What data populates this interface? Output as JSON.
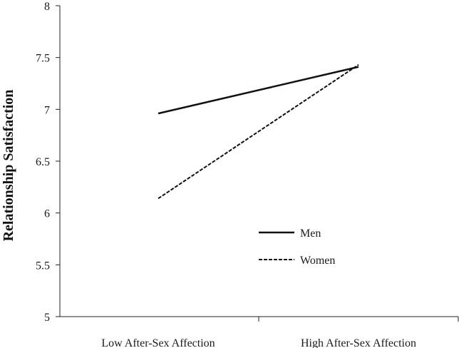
{
  "chart_data": {
    "type": "line",
    "categories": [
      "Low After-Sex Affection",
      "High After-Sex Affection"
    ],
    "series": [
      {
        "name": "Men",
        "values": [
          6.96,
          7.41
        ],
        "color": "#111111",
        "dash": "solid"
      },
      {
        "name": "Women",
        "values": [
          6.14,
          7.43
        ],
        "color": "#111111",
        "dash": "dashed"
      }
    ],
    "ylabel": "Relationship Satisfaction",
    "xlabel": "",
    "title": "",
    "ylim": [
      5,
      8
    ],
    "yticks": [
      5,
      5.5,
      6,
      6.5,
      7,
      7.5,
      8
    ],
    "ytick_labels": [
      "5",
      "5.5",
      "6",
      "6.5",
      "7",
      "7.5",
      "8"
    ],
    "grid": false,
    "legend": "lower-right"
  }
}
